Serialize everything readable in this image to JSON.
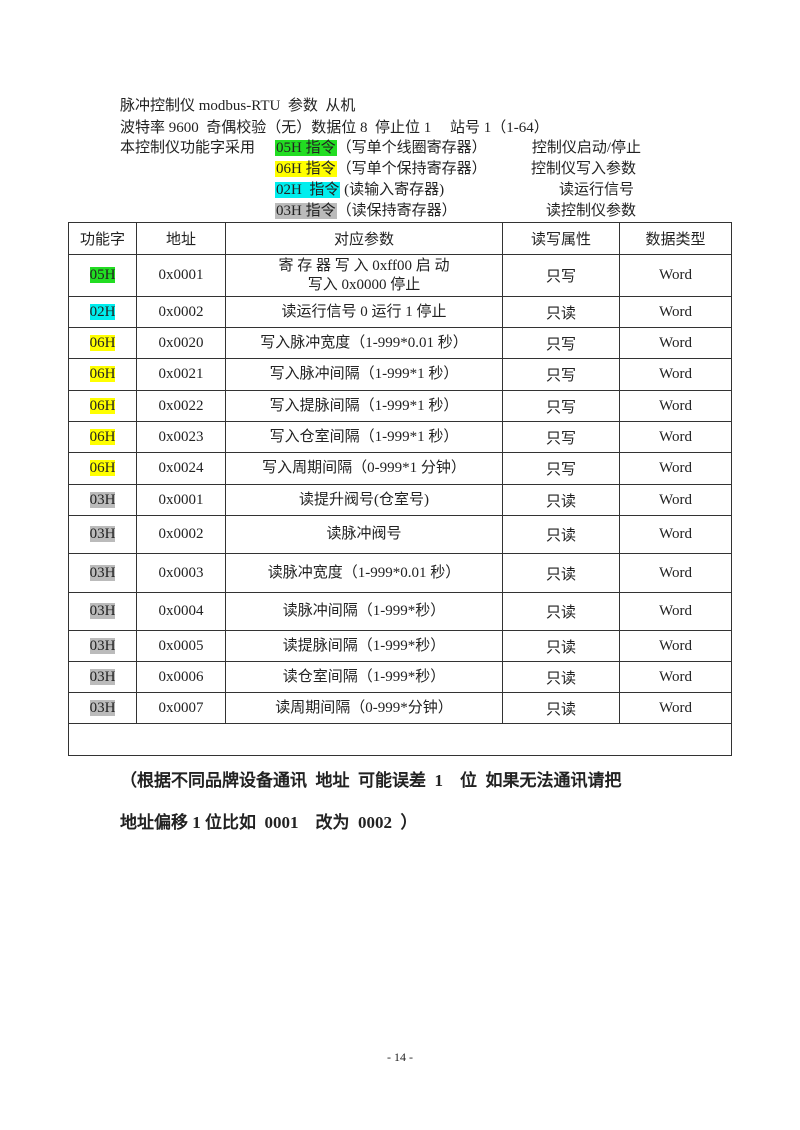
{
  "intro": {
    "line1": "脉冲控制仪 modbus-RTU  参数  从机",
    "line2": "波特率 9600  奇偶校验（无）数据位 8  停止位 1     站号 1（1-64）",
    "line3_prefix": "本控制仪功能字采用",
    "commands": [
      {
        "code": "05H 指令",
        "desc": "（写单个线圈寄存器）",
        "purpose": "控制仪启动/停止",
        "color": "#22dd22"
      },
      {
        "code": "06H 指令",
        "desc": "（写单个保持寄存器）",
        "purpose": "控制仪写入参数",
        "color": "#ffff00"
      },
      {
        "code": "02H  指令",
        "desc": " (读输入寄存器)",
        "purpose": "读运行信号",
        "color": "#00eeee"
      },
      {
        "code": "03H 指令",
        "desc": "（读保持寄存器）",
        "purpose": "读控制仪参数",
        "color": "#bbbbbb"
      }
    ]
  },
  "table": {
    "headers": [
      "功能字",
      "地址",
      "对应参数",
      "读写属性",
      "数据类型"
    ],
    "rows": [
      {
        "code": "05H",
        "color": "#22dd22",
        "addr": "0x0001",
        "param": "寄 存 器 写 入  0xff00      启 动",
        "param2": "写入 0x0000 停止",
        "rw": "只写",
        "type": "Word"
      },
      {
        "code": "02H",
        "color": "#00eeee",
        "addr": "0x0002",
        "param": "读运行信号  0 运行 1 停止",
        "rw": "只读",
        "type": "Word"
      },
      {
        "code": "06H",
        "color": "#ffff00",
        "addr": "0x0020",
        "param": "写入脉冲宽度（1-999*0.01 秒）",
        "rw": "只写",
        "type": "Word"
      },
      {
        "code": "06H",
        "color": "#ffff00",
        "addr": "0x0021",
        "param": "写入脉冲间隔（1-999*1 秒）",
        "rw": "只写",
        "type": "Word"
      },
      {
        "code": "06H",
        "color": "#ffff00",
        "addr": "0x0022",
        "param": "写入提脉间隔（1-999*1 秒）",
        "rw": "只写",
        "type": "Word"
      },
      {
        "code": "06H",
        "color": "#ffff00",
        "addr": "0x0023",
        "param": "写入仓室间隔（1-999*1 秒）",
        "rw": "只写",
        "type": "Word"
      },
      {
        "code": "06H",
        "color": "#ffff00",
        "addr": "0x0024",
        "param": "写入周期间隔（0-999*1 分钟）",
        "rw": "只写",
        "type": "Word"
      },
      {
        "code": "03H",
        "color": "#bbbbbb",
        "addr": "0x0001",
        "param": "读提升阀号(仓室号)",
        "rw": "只读",
        "type": "Word"
      },
      {
        "code": "03H",
        "color": "#bbbbbb",
        "addr": "0x0002",
        "param": "读脉冲阀号",
        "rw": "只读",
        "type": "Word"
      },
      {
        "code": "03H",
        "color": "#bbbbbb",
        "addr": "0x0003",
        "param": "读脉冲宽度（1-999*0.01 秒）",
        "rw": "只读",
        "type": "Word"
      },
      {
        "code": "03H",
        "color": "#bbbbbb",
        "addr": "0x0004",
        "param": "读脉冲间隔（1-999*秒）",
        "rw": "只读",
        "type": "Word"
      },
      {
        "code": "03H",
        "color": "#bbbbbb",
        "addr": "0x0005",
        "param": "读提脉间隔（1-999*秒）",
        "rw": "只读",
        "type": "Word"
      },
      {
        "code": "03H",
        "color": "#bbbbbb",
        "addr": "0x0006",
        "param": "读仓室间隔（1-999*秒）",
        "rw": "只读",
        "type": "Word"
      },
      {
        "code": "03H",
        "color": "#bbbbbb",
        "addr": "0x0007",
        "param": "读周期间隔（0-999*分钟）",
        "rw": "只读",
        "type": "Word"
      }
    ]
  },
  "note": {
    "line1": "（根据不同品牌设备通讯  地址  可能误差  1    位  如果无法通讯请把",
    "line2": "地址偏移 1 位比如  0001    改为  0002  ）"
  },
  "page_number": "- 14 -"
}
